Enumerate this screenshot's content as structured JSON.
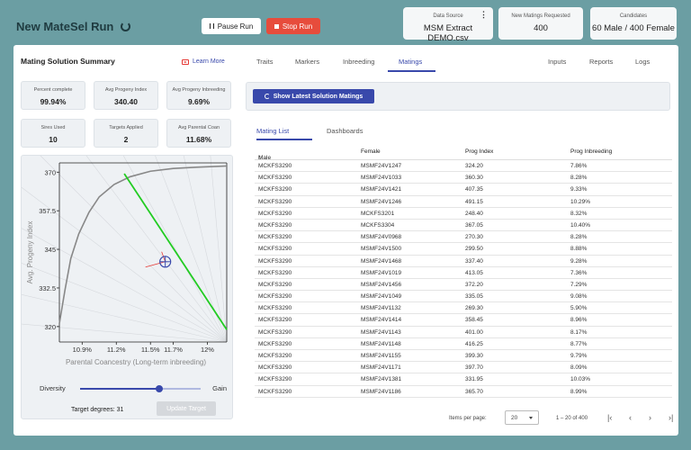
{
  "app": {
    "title": "New MateSel Run",
    "pause_label": "Pause Run",
    "stop_label": "Stop Run"
  },
  "info_cards": [
    {
      "label": "Data Source",
      "value": "MSM Extract DEMO.csv"
    },
    {
      "label": "New Matings Requested",
      "value": "400"
    },
    {
      "label": "Candidates",
      "value": "60 Male / 400 Female"
    }
  ],
  "summary": {
    "title": "Mating Solution Summary",
    "learn_more": "Learn More",
    "stats": [
      {
        "label": "Percent complete",
        "value": "99.94%"
      },
      {
        "label": "Avg Progeny Index",
        "value": "340.40"
      },
      {
        "label": "Avg Progeny Inbreeding",
        "value": "9.69%"
      },
      {
        "label": "Sires Used",
        "value": "10"
      },
      {
        "label": "Targets Applied",
        "value": "2"
      },
      {
        "label": "Avg Parental Coan",
        "value": "11.68%"
      }
    ]
  },
  "chart_data": {
    "type": "line",
    "xlabel": "Parental Coancestry (Long-term inbreeding)",
    "ylabel": "Avg. Progeny Index",
    "x_ticks": [
      "10.9%",
      "11.2%",
      "11.5%",
      "11.7%",
      "12%"
    ],
    "y_ticks": [
      "370",
      "357.5",
      "345",
      "332.5",
      "320"
    ],
    "xlim": [
      10.7,
      12.17
    ],
    "ylim": [
      315,
      373
    ],
    "series": [
      {
        "values": [
          [
            10.7,
            321
          ],
          [
            10.75,
            332
          ],
          [
            10.8,
            342
          ],
          [
            10.87,
            350
          ],
          [
            10.96,
            357
          ],
          [
            11.05,
            362
          ],
          [
            11.18,
            366
          ],
          [
            11.32,
            368.5
          ],
          [
            11.5,
            370.3
          ],
          [
            11.7,
            371.2
          ],
          [
            11.9,
            371.6
          ],
          [
            12.17,
            372
          ]
        ]
      }
    ],
    "target_line": [
      [
        11.27,
        369.5
      ],
      [
        12.17,
        319
      ]
    ],
    "marker": {
      "x": 11.63,
      "y": 341
    }
  },
  "slider": {
    "left_label": "Diversity",
    "right_label": "Gain",
    "value": 0.66
  },
  "target_degrees": "Target degrees: 31",
  "update_label": "Update Target",
  "tabs": [
    "Traits",
    "Markers",
    "Inbreeding",
    "Matings",
    "Inputs",
    "Reports",
    "Logs"
  ],
  "show_button": "Show Latest Solution Matings",
  "subtabs": [
    "Mating List",
    "Dashboards"
  ],
  "table": {
    "columns": [
      "Male",
      "Female",
      "Prog Index",
      "Prog Inbreeding"
    ],
    "rows": [
      [
        "MCKFS3290",
        "MSMF24V1247",
        "324.20",
        "7.86%"
      ],
      [
        "MCKFS3290",
        "MSMF24V1033",
        "360.30",
        "8.28%"
      ],
      [
        "MCKFS3290",
        "MSMF24V1421",
        "407.35",
        "9.33%"
      ],
      [
        "MCKFS3290",
        "MSMF24V1246",
        "491.15",
        "10.29%"
      ],
      [
        "MCKFS3290",
        "MCKFS3201",
        "248.40",
        "8.32%"
      ],
      [
        "MCKFS3290",
        "MCKFS3304",
        "367.05",
        "10.40%"
      ],
      [
        "MCKFS3290",
        "MSMF24V0968",
        "270.30",
        "8.28%"
      ],
      [
        "MCKFS3290",
        "MSMF24V1500",
        "299.50",
        "8.88%"
      ],
      [
        "MCKFS3290",
        "MSMF24V1468",
        "337.40",
        "9.28%"
      ],
      [
        "MCKFS3290",
        "MSMF24V1019",
        "413.05",
        "7.36%"
      ],
      [
        "MCKFS3290",
        "MSMF24V1456",
        "372.20",
        "7.29%"
      ],
      [
        "MCKFS3290",
        "MSMF24V1049",
        "335.05",
        "9.08%"
      ],
      [
        "MCKFS3290",
        "MSMF24V1132",
        "269.30",
        "5.90%"
      ],
      [
        "MCKFS3290",
        "MSMF24V1414",
        "358.45",
        "8.96%"
      ],
      [
        "MCKFS3290",
        "MSMF24V1143",
        "401.00",
        "8.17%"
      ],
      [
        "MCKFS3290",
        "MSMF24V1148",
        "416.25",
        "8.77%"
      ],
      [
        "MCKFS3290",
        "MSMF24V1155",
        "399.30",
        "9.79%"
      ],
      [
        "MCKFS3290",
        "MSMF24V1171",
        "397.70",
        "8.09%"
      ],
      [
        "MCKFS3290",
        "MSMF24V1381",
        "331.95",
        "10.03%"
      ],
      [
        "MCKFS3290",
        "MSMF24V1186",
        "365.70",
        "8.99%"
      ]
    ]
  },
  "pager": {
    "items_label": "Items per page:",
    "per_page": "20",
    "range": "1 – 20 of 400"
  },
  "colors": {
    "accent": "#3949ab",
    "stop": "#e74c3c",
    "frontier": "#888888",
    "target": "#22cc22",
    "marker": "#3949ab"
  }
}
